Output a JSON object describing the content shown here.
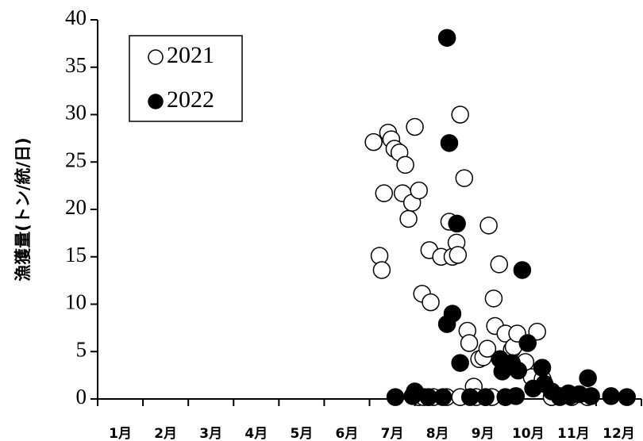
{
  "chart_data": {
    "type": "scatter",
    "y_label": "漁獲量(トン/統/日)",
    "xlim": [
      0,
      12
    ],
    "xticks": [
      {
        "value": 0.5,
        "label": "1月"
      },
      {
        "value": 1.5,
        "label": "2月"
      },
      {
        "value": 2.5,
        "label": "3月"
      },
      {
        "value": 3.5,
        "label": "4月"
      },
      {
        "value": 4.5,
        "label": "5月"
      },
      {
        "value": 5.5,
        "label": "6月"
      },
      {
        "value": 6.5,
        "label": "7月"
      },
      {
        "value": 7.5,
        "label": "8月"
      },
      {
        "value": 8.5,
        "label": "9月"
      },
      {
        "value": 9.5,
        "label": "10月"
      },
      {
        "value": 10.5,
        "label": "11月"
      },
      {
        "value": 11.5,
        "label": "12月"
      }
    ],
    "ylim": [
      0,
      40
    ],
    "yticks": [
      0,
      5,
      10,
      15,
      20,
      25,
      30,
      35,
      40
    ],
    "legend_position": "upper left",
    "series": [
      {
        "name": "2021",
        "color": "#ffffff",
        "edge": "#000000",
        "x": [
          6.09,
          6.22,
          6.27,
          6.32,
          6.41,
          6.48,
          6.55,
          6.66,
          6.73,
          6.79,
          6.86,
          6.94,
          7.0,
          7.09,
          7.16,
          7.32,
          7.35,
          7.58,
          7.76,
          7.83,
          7.92,
          7.95,
          8.0,
          8.09,
          8.16,
          8.2,
          8.3,
          8.42,
          8.51,
          8.63,
          8.6,
          8.74,
          8.77,
          8.86,
          9.0,
          9.14,
          9.18,
          9.26,
          9.44,
          9.58,
          9.7,
          9.82,
          7.09,
          7.2,
          7.3,
          7.41,
          7.7,
          8.0,
          8.35,
          8.56,
          8.7,
          10.02,
          10.2,
          10.46,
          10.81
        ],
        "values": [
          27.1,
          15.1,
          13.6,
          21.7,
          28.1,
          27.4,
          26.4,
          26.0,
          21.7,
          24.7,
          19.0,
          20.7,
          28.7,
          22.0,
          11.1,
          15.7,
          10.2,
          15.0,
          18.7,
          15.0,
          16.5,
          15.2,
          30.0,
          23.3,
          7.2,
          5.9,
          1.3,
          4.2,
          4.4,
          18.3,
          5.3,
          10.6,
          7.7,
          14.2,
          6.9,
          5.2,
          5.5,
          6.9,
          3.9,
          2.3,
          7.1,
          2.1,
          0.2,
          0.2,
          0.2,
          0.2,
          0.2,
          0.2,
          0.2,
          0.2,
          0.2,
          0.2,
          0.2,
          0.2,
          0.2
        ]
      },
      {
        "name": "2022",
        "color": "#000000",
        "edge": "#000000",
        "x": [
          7.71,
          7.76,
          7.93,
          7.83,
          7.71,
          8.0,
          8.88,
          8.93,
          9.14,
          9.28,
          9.37,
          9.49,
          9.61,
          9.81,
          9.86,
          10.02,
          10.39,
          10.82,
          10.63,
          6.57,
          6.95,
          7.0,
          7.3,
          7.62,
          8.22,
          8.56,
          9.0,
          9.23,
          10.2,
          10.42,
          10.89,
          11.33,
          11.68
        ],
        "values": [
          38.1,
          27.0,
          18.5,
          9.0,
          7.9,
          3.8,
          4.2,
          2.9,
          3.8,
          3.0,
          13.6,
          5.9,
          1.1,
          3.3,
          1.6,
          0.8,
          0.6,
          2.2,
          0.5,
          0.2,
          0.3,
          0.8,
          0.2,
          0.2,
          0.2,
          0.2,
          0.2,
          0.3,
          0.3,
          0.3,
          0.3,
          0.3,
          0.2
        ]
      }
    ]
  }
}
